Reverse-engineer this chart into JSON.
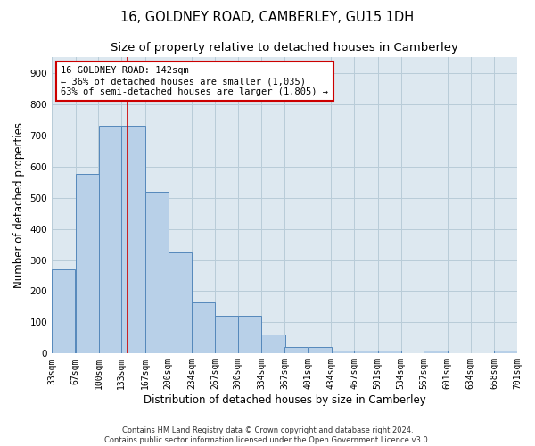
{
  "title": "16, GOLDNEY ROAD, CAMBERLEY, GU15 1DH",
  "subtitle": "Size of property relative to detached houses in Camberley",
  "xlabel": "Distribution of detached houses by size in Camberley",
  "ylabel": "Number of detached properties",
  "footer_line1": "Contains HM Land Registry data © Crown copyright and database right 2024.",
  "footer_line2": "Contains public sector information licensed under the Open Government Licence v3.0.",
  "bar_edges": [
    33,
    67,
    100,
    133,
    167,
    200,
    234,
    267,
    300,
    334,
    367,
    401,
    434,
    467,
    501,
    534,
    567,
    601,
    634,
    668,
    701
  ],
  "bar_heights": [
    270,
    575,
    730,
    730,
    520,
    325,
    165,
    120,
    120,
    60,
    20,
    20,
    10,
    10,
    10,
    0,
    10,
    0,
    0,
    10
  ],
  "bar_color": "#b8d0e8",
  "bar_edge_color": "#5588bb",
  "property_line_x": 142,
  "property_line_color": "#cc0000",
  "annotation_line1": "16 GOLDNEY ROAD: 142sqm",
  "annotation_line2": "← 36% of detached houses are smaller (1,035)",
  "annotation_line3": "63% of semi-detached houses are larger (1,805) →",
  "annotation_box_color": "#cc0000",
  "annotation_fill": "#ffffff",
  "ylim": [
    0,
    950
  ],
  "yticks": [
    0,
    100,
    200,
    300,
    400,
    500,
    600,
    700,
    800,
    900
  ],
  "background_color": "#ffffff",
  "plot_bg_color": "#dde8f0",
  "grid_color": "#b8ccd8",
  "title_fontsize": 10.5,
  "subtitle_fontsize": 9.5,
  "axis_label_fontsize": 8.5,
  "tick_fontsize": 7,
  "annotation_fontsize": 7.5,
  "footer_fontsize": 6
}
